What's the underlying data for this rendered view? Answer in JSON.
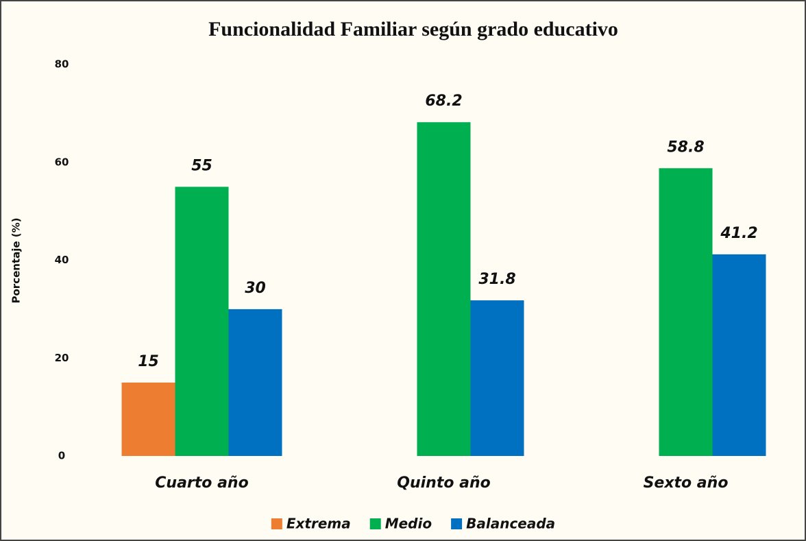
{
  "chart_data": {
    "type": "bar",
    "title": "Funcionalidad Familiar según grado educativo",
    "y_label": "Porcentaje (%)",
    "categories": [
      "Cuarto año",
      "Quinto año",
      "Sexto año"
    ],
    "series": [
      {
        "name": "Extrema",
        "color": "#ed7d31",
        "values": [
          15,
          null,
          null
        ]
      },
      {
        "name": "Medio",
        "color": "#00b050",
        "values": [
          55,
          68.2,
          58.8
        ]
      },
      {
        "name": "Balanceada",
        "color": "#0070c0",
        "values": [
          30,
          31.8,
          41.2
        ]
      }
    ],
    "ylim": [
      0,
      80
    ],
    "yticks": [
      0,
      20,
      40,
      60,
      80
    ],
    "grid": false,
    "legend": "bottom"
  }
}
